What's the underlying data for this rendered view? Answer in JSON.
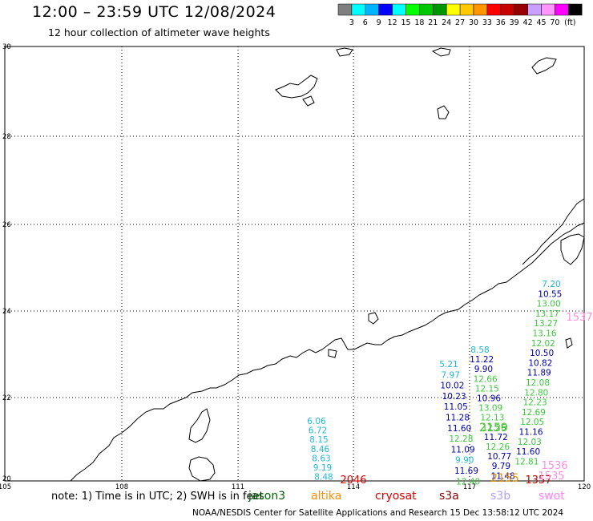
{
  "title": "12:00 – 23:59 UTC 12/08/2024",
  "subtitle": "12 hour collection of altimeter wave heights",
  "colorbar": {
    "ticks": [
      "3",
      "6",
      "9",
      "12",
      "15",
      "18",
      "21",
      "24",
      "27",
      "30",
      "33",
      "36",
      "39",
      "42",
      "45",
      "70"
    ],
    "unit": "(ft)",
    "colors": [
      "#7f7f7f",
      "#00ffff",
      "#00b4ff",
      "#0000ff",
      "#00ffff",
      "#00ff00",
      "#00c800",
      "#009600",
      "#ffff00",
      "#ffc800",
      "#ff9600",
      "#ff0000",
      "#c80000",
      "#960000",
      "#c8a0ff",
      "#ff96ff",
      "#ff00ff",
      "#000000"
    ]
  },
  "map": {
    "lat_ticks": [
      "30",
      "28",
      "26",
      "24",
      "22",
      "20"
    ],
    "lon_ticks": [
      "105",
      "108",
      "111",
      "114",
      "117",
      "120"
    ]
  },
  "track_a": {
    "color": "#20b8d8",
    "values": [
      "6.06",
      "6.72",
      "8.15",
      "8.46",
      "8.63",
      "9.19",
      "8.48"
    ]
  },
  "pass_2046": {
    "label": "2046",
    "color": "#e00000"
  },
  "track_b": {
    "values": [
      {
        "v": "5.21",
        "c": "#20b8d8"
      },
      {
        "v": "7.97",
        "c": "#20b8d8"
      },
      {
        "v": "10.02",
        "c": "#0000b0"
      },
      {
        "v": "10.23",
        "c": "#0000b0"
      },
      {
        "v": "11.05",
        "c": "#0000b0"
      },
      {
        "v": "11.28",
        "c": "#0000b0"
      },
      {
        "v": "11.60",
        "c": "#0000b0"
      },
      {
        "v": "12.28",
        "c": "#3cc83c"
      },
      {
        "v": "11.09",
        "c": "#0000b0"
      },
      {
        "v": "9.90",
        "c": "#20b8d8"
      },
      {
        "v": "11.69",
        "c": "#0000b0"
      },
      {
        "v": "12.40",
        "c": "#3cc83c"
      }
    ]
  },
  "track_c": {
    "values": [
      {
        "v": "8.58",
        "c": "#20b8d8"
      },
      {
        "v": "11.22",
        "c": "#0000b0"
      },
      {
        "v": "9.90",
        "c": "#0000b0"
      },
      {
        "v": "12.66",
        "c": "#3cc83c"
      },
      {
        "v": "12.15",
        "c": "#3cc83c"
      },
      {
        "v": "10.96",
        "c": "#0000b0"
      },
      {
        "v": "13.09",
        "c": "#3cc83c"
      },
      {
        "v": "12.13",
        "c": "#3cc83c"
      },
      {
        "v": "12.26",
        "c": "#3cc83c"
      },
      {
        "v": "11.72",
        "c": "#0000b0"
      },
      {
        "v": "12.26",
        "c": "#3cc83c"
      },
      {
        "v": "10.77",
        "c": "#0000b0"
      },
      {
        "v": "9.79",
        "c": "#0000b0"
      },
      {
        "v": "11.48",
        "c": "#0000b0"
      }
    ]
  },
  "track_d": {
    "values": [
      {
        "v": "7.20",
        "c": "#20b8d8"
      },
      {
        "v": "10.55",
        "c": "#0000b0"
      },
      {
        "v": "13.00",
        "c": "#3cc83c"
      },
      {
        "v": "13.17",
        "c": "#3cc83c"
      },
      {
        "v": "13.27",
        "c": "#3cc83c"
      },
      {
        "v": "13.16",
        "c": "#3cc83c"
      },
      {
        "v": "12.02",
        "c": "#3cc83c"
      },
      {
        "v": "10.50",
        "c": "#0000b0"
      },
      {
        "v": "10.82",
        "c": "#0000b0"
      },
      {
        "v": "11.89",
        "c": "#0000b0"
      },
      {
        "v": "12.08",
        "c": "#3cc83c"
      },
      {
        "v": "12.80",
        "c": "#3cc83c"
      },
      {
        "v": "12.23",
        "c": "#3cc83c"
      },
      {
        "v": "12.69",
        "c": "#3cc83c"
      },
      {
        "v": "12.05",
        "c": "#3cc83c"
      },
      {
        "v": "11.16",
        "c": "#0000b0"
      },
      {
        "v": "12.03",
        "c": "#3cc83c"
      },
      {
        "v": "11.60",
        "c": "#0000b0"
      },
      {
        "v": "12.81",
        "c": "#3cc83c"
      }
    ]
  },
  "pass_labels": [
    {
      "label": "2159",
      "color": "#e89000"
    },
    {
      "label": "2159",
      "color": "#3cc83c"
    },
    {
      "label": "2155",
      "color": "#e89000"
    },
    {
      "label": "1357",
      "color": "#c00000"
    },
    {
      "label": "1537",
      "color": "#ff90e0"
    },
    {
      "label": "1536",
      "color": "#ff90e0"
    },
    {
      "label": "1535",
      "color": "#ff90e0"
    }
  ],
  "note": "note: 1) Time is in UTC; 2) SWH is in feet",
  "legend": [
    {
      "name": "jason3",
      "color": "#006400"
    },
    {
      "name": "altika",
      "color": "#ff8c00"
    },
    {
      "name": "cryosat",
      "color": "#e00000"
    },
    {
      "name": "s3a",
      "color": "#8b0000"
    },
    {
      "name": "s3b",
      "color": "#b0a0ff"
    },
    {
      "name": "swot",
      "color": "#ff80ff"
    }
  ],
  "footer": "NOAA/NESDIS Center for Satellite Applications and Research    15 Dec 13:58:12 UTC 2024"
}
